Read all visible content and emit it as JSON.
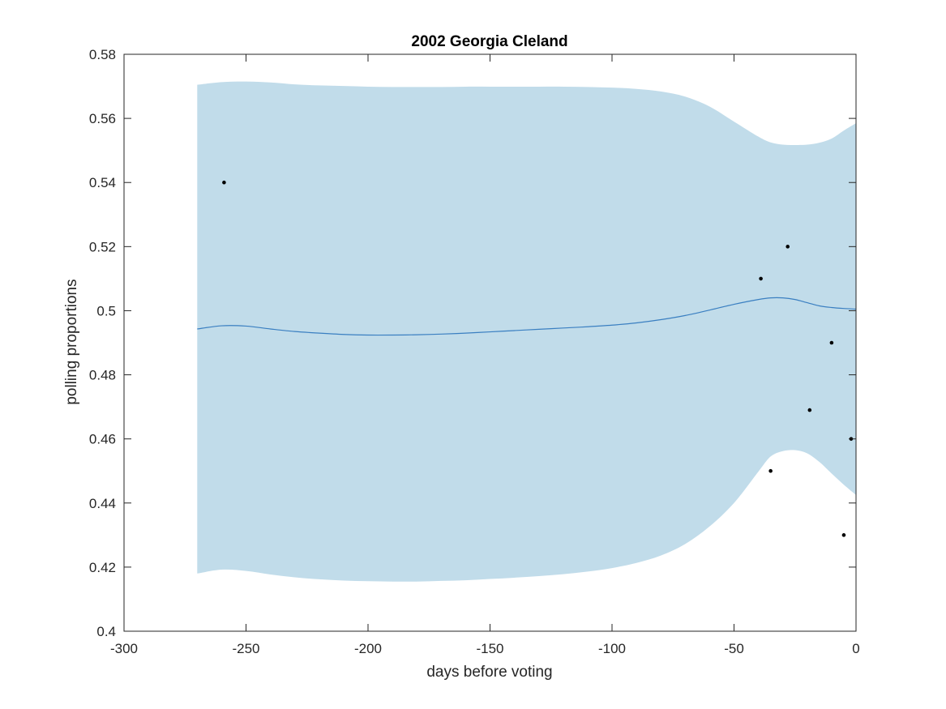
{
  "chart_data": {
    "type": "line",
    "title": "2002 Georgia Cleland",
    "xlabel": "days before voting",
    "ylabel": "polling proportions",
    "xlim": [
      -300,
      0
    ],
    "ylim": [
      0.4,
      0.58
    ],
    "xticks": [
      -300,
      -250,
      -200,
      -150,
      -100,
      -50,
      0
    ],
    "yticks": [
      0.4,
      0.42,
      0.44,
      0.46,
      0.48,
      0.5,
      0.52,
      0.54,
      0.56,
      0.58
    ],
    "grid": false,
    "legend": "none",
    "colors": {
      "band": "#c1dcea",
      "mean": "#3a7fc1",
      "points": "#000000",
      "axes": "#262626"
    },
    "series": [
      {
        "type": "line",
        "x": [
          -270,
          -260,
          -250,
          -240,
          -230,
          -220,
          -210,
          -200,
          -190,
          -180,
          -170,
          -160,
          -150,
          -140,
          -130,
          -120,
          -110,
          -100,
          -90,
          -80,
          -70,
          -60,
          -50,
          -40,
          -35,
          -30,
          -25,
          -20,
          -15,
          -10,
          -5,
          0
        ],
        "y": [
          0.4943,
          0.4953,
          0.4952,
          0.4943,
          0.4935,
          0.493,
          0.4926,
          0.4924,
          0.4924,
          0.4925,
          0.4927,
          0.493,
          0.4934,
          0.4938,
          0.4942,
          0.4946,
          0.495,
          0.4955,
          0.4962,
          0.4972,
          0.4985,
          0.5002,
          0.502,
          0.5035,
          0.504,
          0.504,
          0.5035,
          0.5025,
          0.5015,
          0.501,
          0.5007,
          0.5005
        ]
      },
      {
        "type": "band",
        "x": [
          -270,
          -260,
          -250,
          -240,
          -230,
          -220,
          -210,
          -200,
          -190,
          -180,
          -170,
          -160,
          -150,
          -140,
          -130,
          -120,
          -110,
          -100,
          -90,
          -80,
          -70,
          -60,
          -50,
          -40,
          -35,
          -30,
          -25,
          -20,
          -15,
          -10,
          -5,
          0
        ],
        "upper": [
          0.5705,
          0.5713,
          0.5715,
          0.5712,
          0.5706,
          0.5703,
          0.5701,
          0.5699,
          0.5698,
          0.5698,
          0.5698,
          0.5699,
          0.5699,
          0.5699,
          0.5699,
          0.5699,
          0.5698,
          0.5696,
          0.5692,
          0.5684,
          0.5668,
          0.5637,
          0.559,
          0.5543,
          0.5525,
          0.5518,
          0.5517,
          0.5518,
          0.5524,
          0.5537,
          0.5562,
          0.5585
        ],
        "lower": [
          0.418,
          0.4192,
          0.4188,
          0.4177,
          0.4168,
          0.4162,
          0.4158,
          0.4156,
          0.4155,
          0.4155,
          0.4157,
          0.4159,
          0.4163,
          0.4167,
          0.4172,
          0.4178,
          0.4186,
          0.4197,
          0.4213,
          0.4236,
          0.4272,
          0.4327,
          0.44,
          0.4498,
          0.4545,
          0.4562,
          0.4565,
          0.4555,
          0.4528,
          0.4492,
          0.4457,
          0.4425
        ]
      },
      {
        "type": "scatter",
        "x": [
          -259,
          -39,
          -28,
          -35,
          -10,
          -19,
          -5,
          -2
        ],
        "y": [
          0.54,
          0.51,
          0.52,
          0.45,
          0.49,
          0.469,
          0.43,
          0.46
        ]
      }
    ]
  }
}
